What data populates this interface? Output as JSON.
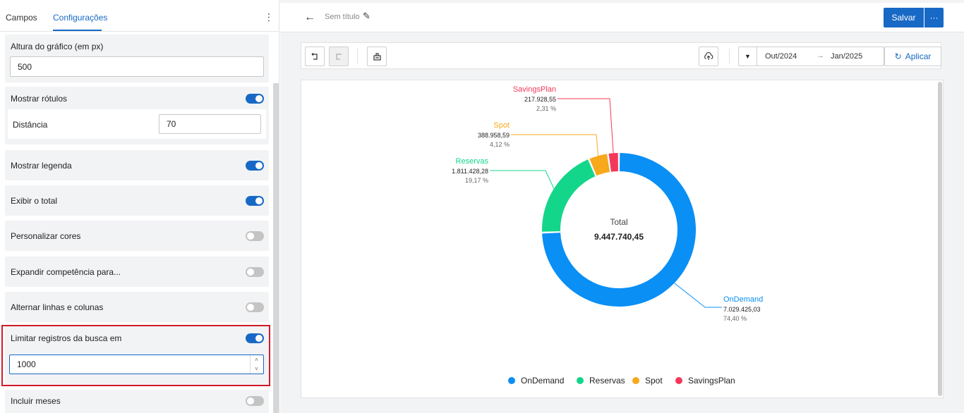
{
  "tabs": {
    "campos": "Campos",
    "configuracoes": "Configurações"
  },
  "settings": {
    "altura": {
      "label": "Altura do gráfico (em px)",
      "value": "500"
    },
    "rotulos": {
      "label": "Mostrar rótulos",
      "enabled": true,
      "distancia_label": "Distância",
      "distancia_value": "70"
    },
    "legenda": {
      "label": "Mostrar legenda",
      "enabled": true
    },
    "total": {
      "label": "Exibir o total",
      "enabled": true
    },
    "cores": {
      "label": "Personalizar cores",
      "enabled": false
    },
    "expandir": {
      "label": "Expandir competência para...",
      "enabled": false
    },
    "alternar": {
      "label": "Alternar linhas e colunas",
      "enabled": false
    },
    "limitar": {
      "label": "Limitar registros da busca em",
      "enabled": true,
      "value": "1000"
    },
    "meses": {
      "label": "Incluir meses",
      "enabled": false
    }
  },
  "header": {
    "title": "Sem título",
    "save_label": "Salvar",
    "more_label": "···"
  },
  "toolbar": {
    "date_from": "Out/2024",
    "date_arrow": "→",
    "date_to": "Jan/2025",
    "apply_label": "Aplicar"
  },
  "colors": {
    "accent": "#1769c5",
    "highlight": "#d11a2a"
  },
  "chart_data": {
    "type": "donut",
    "total_label": "Total",
    "total_value": "9.447.740,45",
    "series": [
      {
        "name": "OnDemand",
        "value": 7029425.03,
        "value_label": "7.029.425,03",
        "percent_label": "74,40 %",
        "color": "#0a8ff5"
      },
      {
        "name": "Reservas",
        "value": 1811428.28,
        "value_label": "1.811.428,28",
        "percent_label": "19,17 %",
        "color": "#13d68a"
      },
      {
        "name": "Spot",
        "value": 388958.59,
        "value_label": "388.958,59",
        "percent_label": "4,12 %",
        "color": "#f7a81b"
      },
      {
        "name": "SavingsPlan",
        "value": 217928.55,
        "value_label": "217.928,55",
        "percent_label": "2,31 %",
        "color": "#f5385a"
      }
    ],
    "legend_position": "bottom"
  }
}
